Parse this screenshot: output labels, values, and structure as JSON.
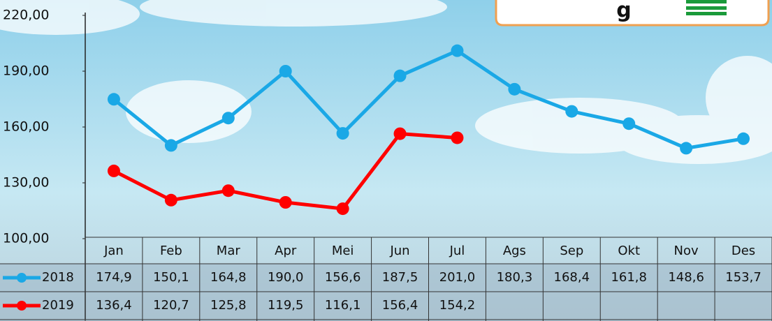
{
  "chart_data": {
    "type": "line",
    "annotation": "g",
    "categories": [
      "Jan",
      "Feb",
      "Mar",
      "Apr",
      "Mei",
      "Jun",
      "Jul",
      "Ags",
      "Sep",
      "Okt",
      "Nov",
      "Des"
    ],
    "series": [
      {
        "name": "2018",
        "color": "#1aa8e6",
        "values": [
          174.9,
          150.1,
          164.8,
          190.0,
          156.6,
          187.5,
          201.0,
          180.3,
          168.4,
          161.8,
          148.6,
          153.7
        ],
        "value_labels": [
          "174,9",
          "150,1",
          "164,8",
          "190,0",
          "156,6",
          "187,5",
          "201,0",
          "180,3",
          "168,4",
          "161,8",
          "148,6",
          "153,7"
        ]
      },
      {
        "name": "2019",
        "color": "#ff0000",
        "values": [
          136.4,
          120.7,
          125.8,
          119.5,
          116.1,
          156.4,
          154.2,
          null,
          null,
          null,
          null,
          null
        ],
        "value_labels": [
          "136,4",
          "120,7",
          "125,8",
          "119,5",
          "116,1",
          "156,4",
          "154,2",
          null,
          null,
          null,
          null,
          null
        ]
      }
    ],
    "ylim": [
      100,
      220
    ],
    "yticks": [
      {
        "value": 100,
        "label": "100,00"
      },
      {
        "value": 130,
        "label": "130,00"
      },
      {
        "value": 160,
        "label": "160,00"
      },
      {
        "value": 190,
        "label": "190,00"
      },
      {
        "value": 220,
        "label": "220,00"
      }
    ],
    "grid": false
  }
}
